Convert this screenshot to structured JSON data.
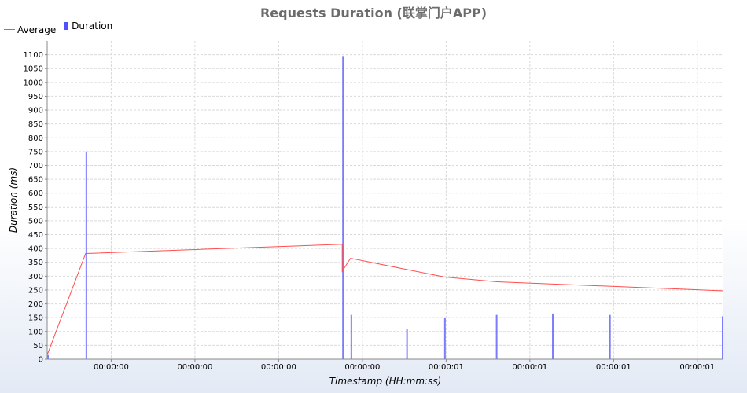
{
  "title": "Requests Duration (联掌门户APP)",
  "legend": {
    "average_label": "Average",
    "duration_label": "Duration"
  },
  "colors": {
    "average": "#ff4d4d",
    "duration": "#5050ff",
    "title": "#6b6b6b"
  },
  "chart_data": {
    "type": "bar",
    "title": "Requests Duration (联掌门户APP)",
    "xlabel": "Timestamp (HH:mm:ss)",
    "ylabel": "Duration (ms)",
    "ylim": [
      0,
      1150
    ],
    "grid": true,
    "legend_position": "top-left",
    "x_tick_labels": [
      "00:00:00",
      "00:00:00",
      "00:00:00",
      "00:00:00",
      "00:00:01",
      "00:00:01",
      "00:00:01",
      "00:00:01"
    ],
    "x_tick_positions_sec": [
      0.13,
      0.3,
      0.47,
      0.64,
      0.81,
      0.98,
      1.15,
      1.32
    ],
    "xlim_sec": [
      0.0,
      1.373
    ],
    "series": [
      {
        "name": "Duration",
        "kind": "bar",
        "x_sec": [
          0.0,
          0.078,
          0.599,
          0.616,
          0.729,
          0.806,
          0.911,
          1.025,
          1.141,
          1.373
        ],
        "values": [
          15,
          750,
          1095,
          160,
          110,
          150,
          160,
          165,
          160,
          155
        ]
      },
      {
        "name": "Average",
        "kind": "line",
        "x_sec": [
          0.0,
          0.078,
          0.599,
          0.599,
          0.616,
          0.806,
          0.911,
          1.373
        ],
        "values": [
          15,
          382,
          415,
          318,
          365,
          297,
          280,
          247
        ]
      }
    ]
  }
}
